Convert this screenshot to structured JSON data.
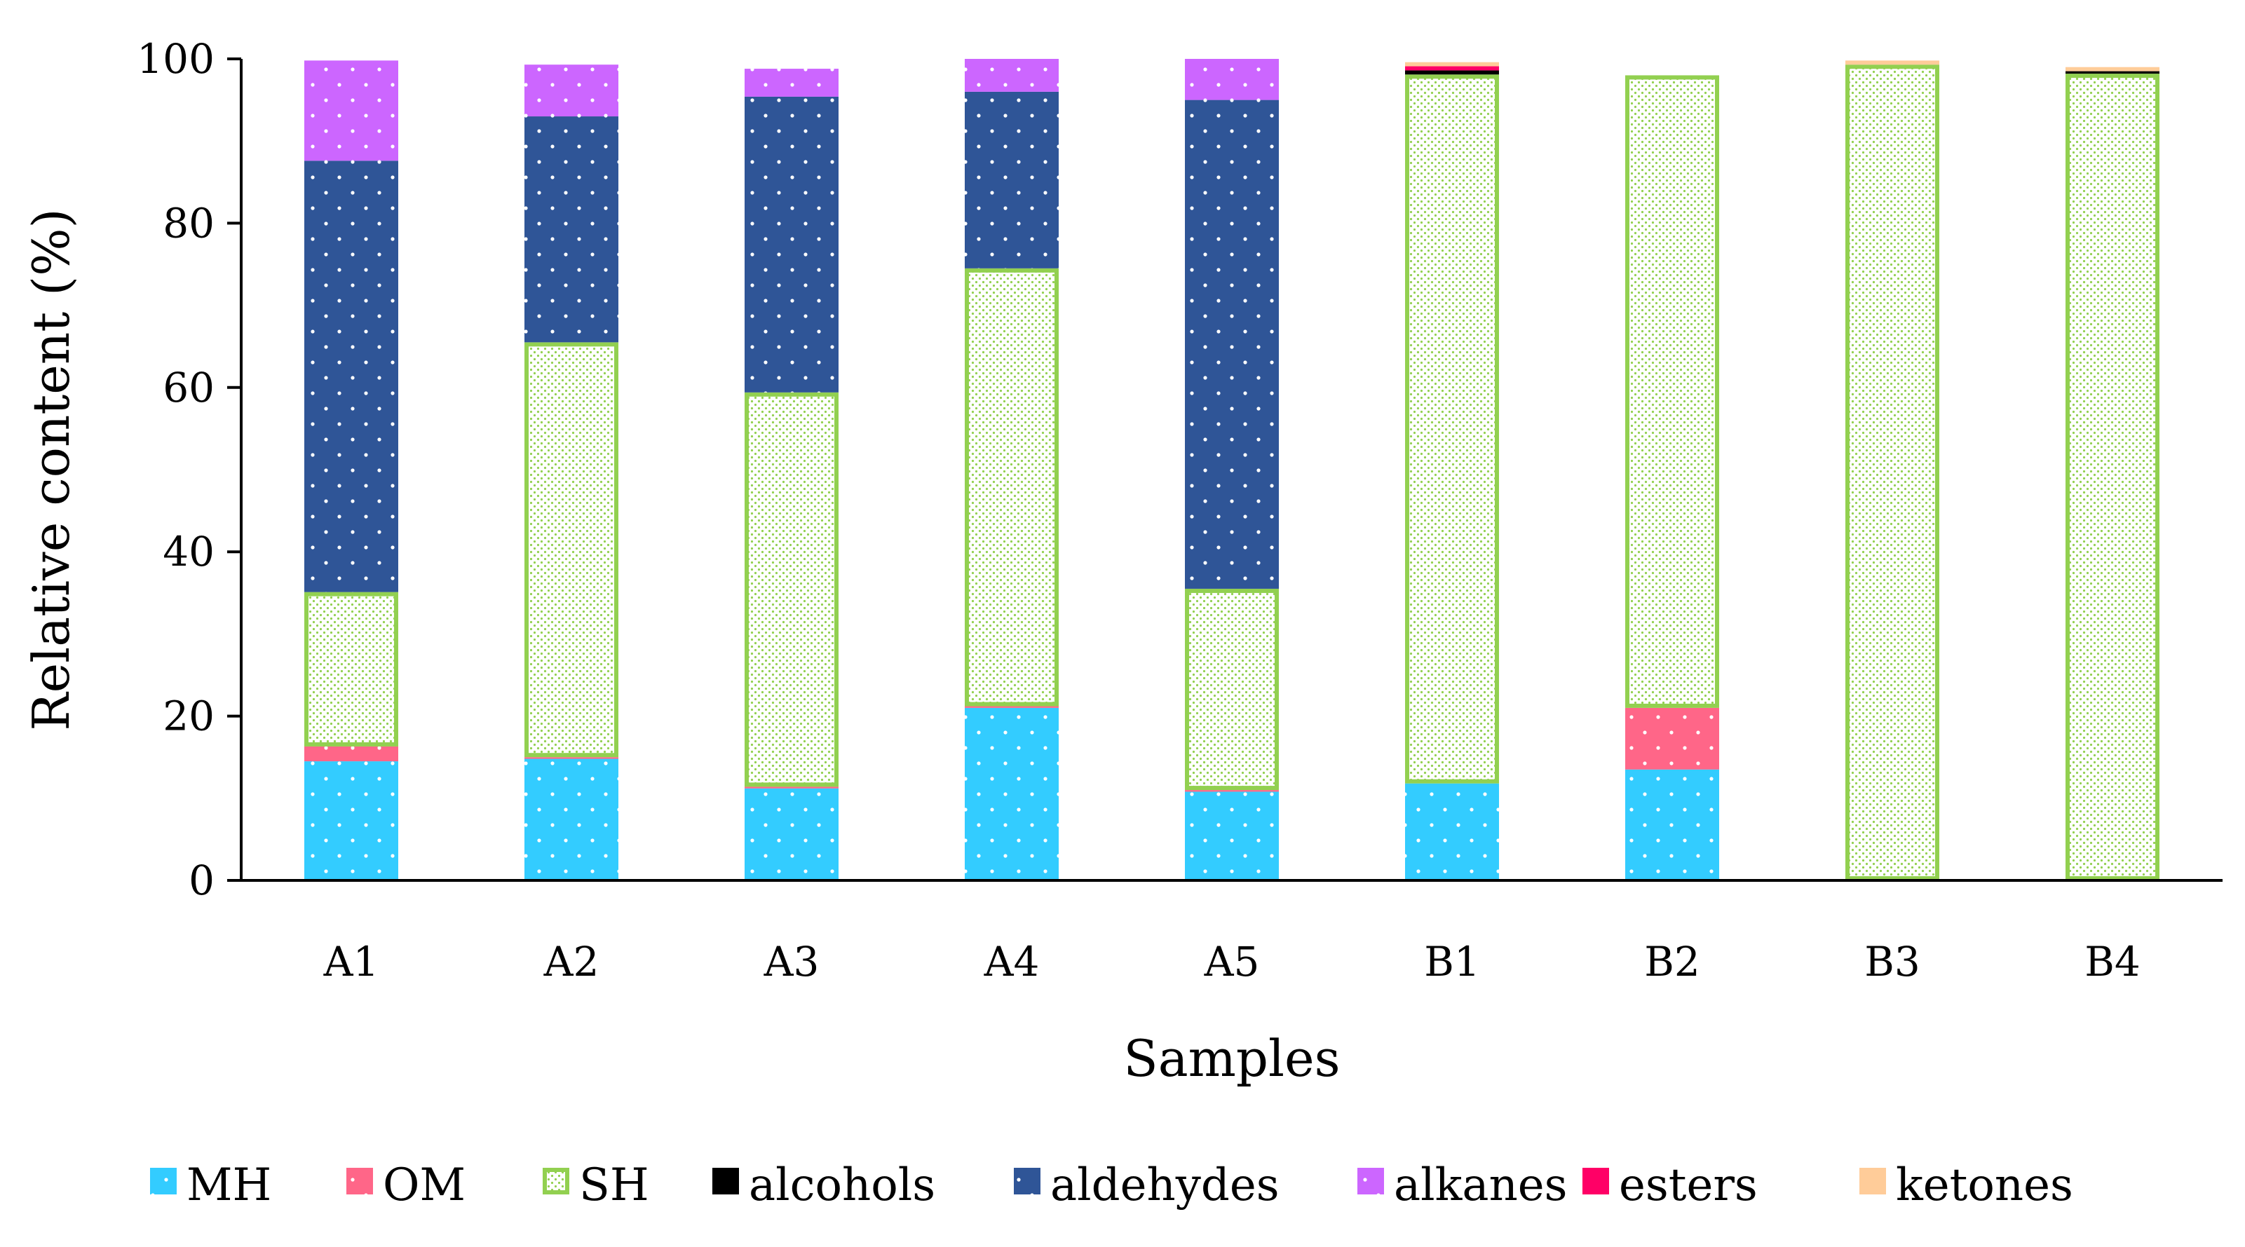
{
  "chart_data": {
    "type": "bar",
    "stacked": true,
    "title": "",
    "xlabel": "Samples",
    "ylabel": "Relative content (%)",
    "ylim": [
      0,
      100
    ],
    "yticks": [
      0,
      20,
      40,
      60,
      80,
      100
    ],
    "grid": false,
    "legend_position": "bottom",
    "categories": [
      "A1",
      "A2",
      "A3",
      "A4",
      "A5",
      "B1",
      "B2",
      "B3",
      "B4"
    ],
    "series": [
      {
        "name": "MH",
        "color": "#33CCFF",
        "pattern": "dots-white",
        "values": [
          14.5,
          14.8,
          11.2,
          21.0,
          10.8,
          11.8,
          13.5,
          0.0,
          0.0
        ]
      },
      {
        "name": "OM",
        "color": "#FF6688",
        "pattern": "dots-white",
        "values": [
          1.8,
          0.2,
          0.2,
          0.2,
          0.2,
          0.0,
          7.5,
          0.0,
          0.0
        ]
      },
      {
        "name": "SH",
        "color": "#92D050",
        "pattern": "dense-dots-outline",
        "values": [
          18.8,
          50.5,
          48.0,
          53.3,
          24.5,
          86.3,
          77.0,
          99.3,
          98.2
        ]
      },
      {
        "name": "alcohols",
        "color": "#000000",
        "pattern": "solid",
        "values": [
          0.0,
          0.0,
          0.0,
          0.0,
          0.0,
          0.5,
          0.0,
          0.0,
          0.3
        ]
      },
      {
        "name": "aldehydes",
        "color": "#2F5597",
        "pattern": "dots-white",
        "values": [
          52.5,
          27.5,
          36.0,
          21.5,
          59.5,
          0.0,
          0.0,
          0.0,
          0.0
        ]
      },
      {
        "name": "alkanes",
        "color": "#CC66FF",
        "pattern": "dots-white",
        "values": [
          12.2,
          6.3,
          3.4,
          4.0,
          5.0,
          0.0,
          0.0,
          0.0,
          0.0
        ]
      },
      {
        "name": "esters",
        "color": "#FF0066",
        "pattern": "solid",
        "values": [
          0.0,
          0.0,
          0.0,
          0.0,
          0.0,
          0.5,
          0.0,
          0.0,
          0.0
        ]
      },
      {
        "name": "ketones",
        "color": "#FFCC99",
        "pattern": "solid",
        "values": [
          0.0,
          0.0,
          0.0,
          0.0,
          0.0,
          0.5,
          0.0,
          0.5,
          0.5
        ]
      }
    ]
  }
}
